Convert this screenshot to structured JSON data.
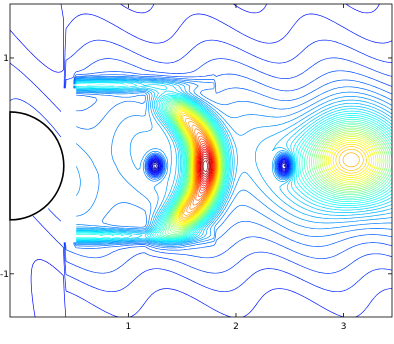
{
  "chart_data": {
    "type": "contour",
    "title": "",
    "xlabel": "",
    "ylabel": "",
    "xlim": [
      -0.1,
      3.45
    ],
    "ylim": [
      -1.4,
      1.5
    ],
    "x_ticks": [
      {
        "value": 1,
        "label": "1"
      },
      {
        "value": 2,
        "label": "2"
      },
      {
        "value": 3,
        "label": "3"
      }
    ],
    "y_ticks": [
      {
        "value": 1,
        "label": "1"
      },
      {
        "value": -1,
        "label": "-1"
      }
    ],
    "grid": false,
    "colormap": "jet",
    "contour_levels": 60,
    "cylinder": {
      "center_x": -0.1,
      "center_y": 0,
      "radius": 0.5
    },
    "channel_plates": {
      "x_start": 0.5,
      "x_end": 1.0,
      "y_top": 0.75,
      "y_bottom": -0.65
    },
    "field_features": [
      {
        "kind": "crescent_max",
        "x": 1.7,
        "y": 0.0,
        "level": 0.95
      },
      {
        "kind": "crescent_inner_ring",
        "x": 1.55,
        "y": 0.0,
        "level": 0.65
      },
      {
        "kind": "local_min",
        "x": 1.25,
        "y": 0.0,
        "level": 0.1
      },
      {
        "kind": "local_min",
        "x": 2.45,
        "y": 0.0,
        "level": 0.05
      },
      {
        "kind": "far_peak",
        "x": 3.05,
        "y": 0.05,
        "level": 0.78
      }
    ]
  }
}
